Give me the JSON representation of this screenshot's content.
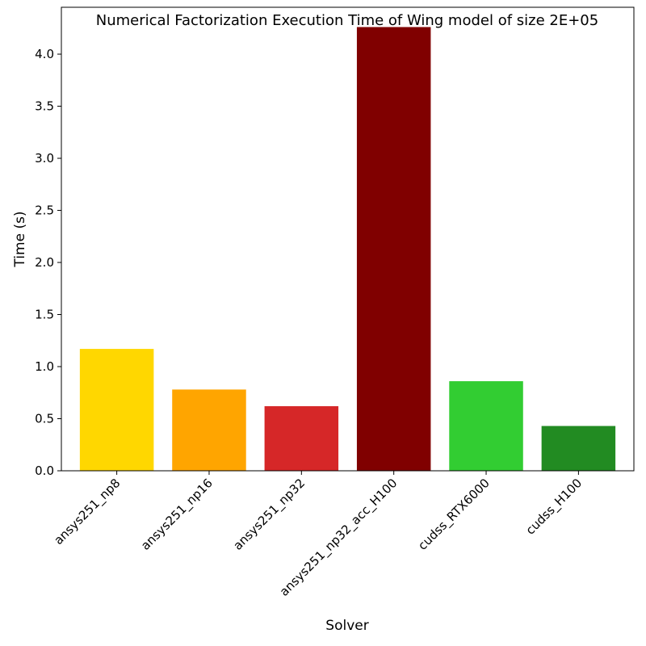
{
  "chart_data": {
    "type": "bar",
    "title": "Numerical Factorization Execution Time of Wing model of size 2E+05",
    "xlabel": "Solver",
    "ylabel": "Time (s)",
    "categories": [
      "ansys251_np8",
      "ansys251_np16",
      "ansys251_np32",
      "ansys251_np32_acc_H100",
      "cudss_RTX6000",
      "cudss_H100"
    ],
    "values": [
      1.17,
      0.78,
      0.62,
      4.26,
      0.86,
      0.43
    ],
    "colors": [
      "#ffd700",
      "#ffa500",
      "#d62728",
      "#800000",
      "#32cd32",
      "#228b22"
    ],
    "ylim": [
      0,
      4.45
    ],
    "yticks": [
      "0.0",
      "0.5",
      "1.0",
      "1.5",
      "2.0",
      "2.5",
      "3.0",
      "3.5",
      "4.0"
    ],
    "grid": false,
    "legend": "none"
  }
}
